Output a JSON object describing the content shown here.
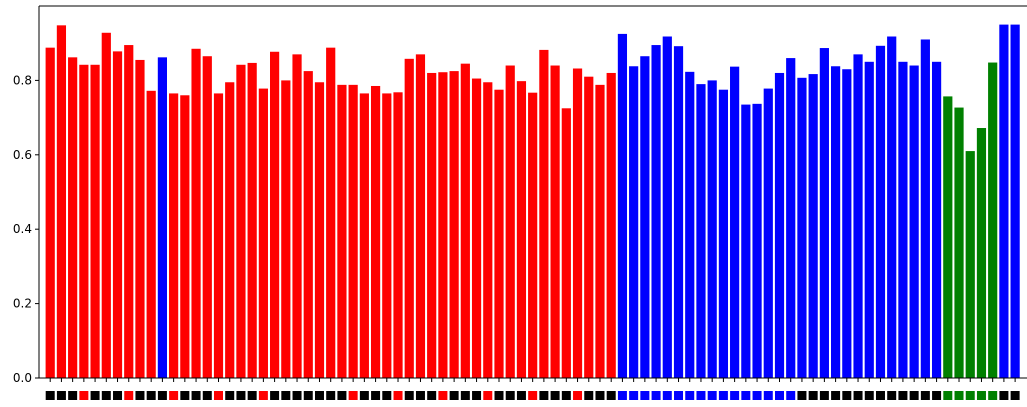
{
  "chart_data": {
    "type": "bar",
    "title": "",
    "xlabel": "",
    "ylabel": "",
    "ylim": [
      0,
      1.0
    ],
    "yticks": [
      "0.0",
      "0.2",
      "0.4",
      "0.6",
      "0.8"
    ],
    "ytick_values": [
      0.0,
      0.2,
      0.4,
      0.6,
      0.8
    ],
    "grid": false,
    "legend": "none",
    "colors": {
      "red": "#ff0000",
      "blue": "#0000ff",
      "green": "#008000",
      "black": "#000000"
    },
    "values": [
      0.888,
      0.948,
      0.862,
      0.842,
      0.842,
      0.928,
      0.878,
      0.895,
      0.855,
      0.772,
      0.862,
      0.765,
      0.76,
      0.885,
      0.865,
      0.765,
      0.795,
      0.842,
      0.847,
      0.778,
      0.877,
      0.8,
      0.87,
      0.825,
      0.795,
      0.888,
      0.788,
      0.788,
      0.765,
      0.785,
      0.765,
      0.768,
      0.858,
      0.87,
      0.82,
      0.822,
      0.825,
      0.845,
      0.805,
      0.795,
      0.775,
      0.84,
      0.798,
      0.767,
      0.882,
      0.84,
      0.725,
      0.832,
      0.81,
      0.788,
      0.82,
      0.925,
      0.838,
      0.865,
      0.895,
      0.918,
      0.892,
      0.823,
      0.79,
      0.8,
      0.775,
      0.837,
      0.735,
      0.737,
      0.778,
      0.82,
      0.86,
      0.807,
      0.817,
      0.887,
      0.838,
      0.83,
      0.87,
      0.85,
      0.893,
      0.918,
      0.85,
      0.84,
      0.91,
      0.85,
      0.757,
      0.727,
      0.61,
      0.672,
      0.848,
      0.95,
      0.95
    ],
    "bar_colors": [
      "red",
      "red",
      "red",
      "red",
      "red",
      "red",
      "red",
      "red",
      "red",
      "red",
      "blue",
      "red",
      "red",
      "red",
      "red",
      "red",
      "red",
      "red",
      "red",
      "red",
      "red",
      "red",
      "red",
      "red",
      "red",
      "red",
      "red",
      "red",
      "red",
      "red",
      "red",
      "red",
      "red",
      "red",
      "red",
      "red",
      "red",
      "red",
      "red",
      "red",
      "red",
      "red",
      "red",
      "red",
      "red",
      "red",
      "red",
      "red",
      "red",
      "red",
      "red",
      "blue",
      "blue",
      "blue",
      "blue",
      "blue",
      "blue",
      "blue",
      "blue",
      "blue",
      "blue",
      "blue",
      "blue",
      "blue",
      "blue",
      "blue",
      "blue",
      "blue",
      "blue",
      "blue",
      "blue",
      "blue",
      "blue",
      "blue",
      "blue",
      "blue",
      "blue",
      "blue",
      "blue",
      "blue",
      "green",
      "green",
      "green",
      "green",
      "green",
      "blue",
      "blue"
    ],
    "tick_marker_colors": [
      "black",
      "black",
      "black",
      "red",
      "black",
      "black",
      "black",
      "red",
      "black",
      "black",
      "black",
      "red",
      "black",
      "black",
      "black",
      "red",
      "black",
      "black",
      "black",
      "red",
      "black",
      "black",
      "black",
      "black",
      "black",
      "black",
      "black",
      "red",
      "black",
      "black",
      "black",
      "red",
      "black",
      "black",
      "black",
      "red",
      "black",
      "black",
      "black",
      "red",
      "black",
      "black",
      "black",
      "red",
      "black",
      "black",
      "black",
      "red",
      "black",
      "black",
      "black",
      "blue",
      "blue",
      "blue",
      "blue",
      "blue",
      "blue",
      "blue",
      "blue",
      "blue",
      "blue",
      "blue",
      "blue",
      "blue",
      "blue",
      "blue",
      "blue",
      "black",
      "black",
      "black",
      "black",
      "black",
      "black",
      "black",
      "black",
      "black",
      "black",
      "black",
      "black",
      "black",
      "green",
      "green",
      "green",
      "green",
      "green",
      "black",
      "black"
    ]
  }
}
